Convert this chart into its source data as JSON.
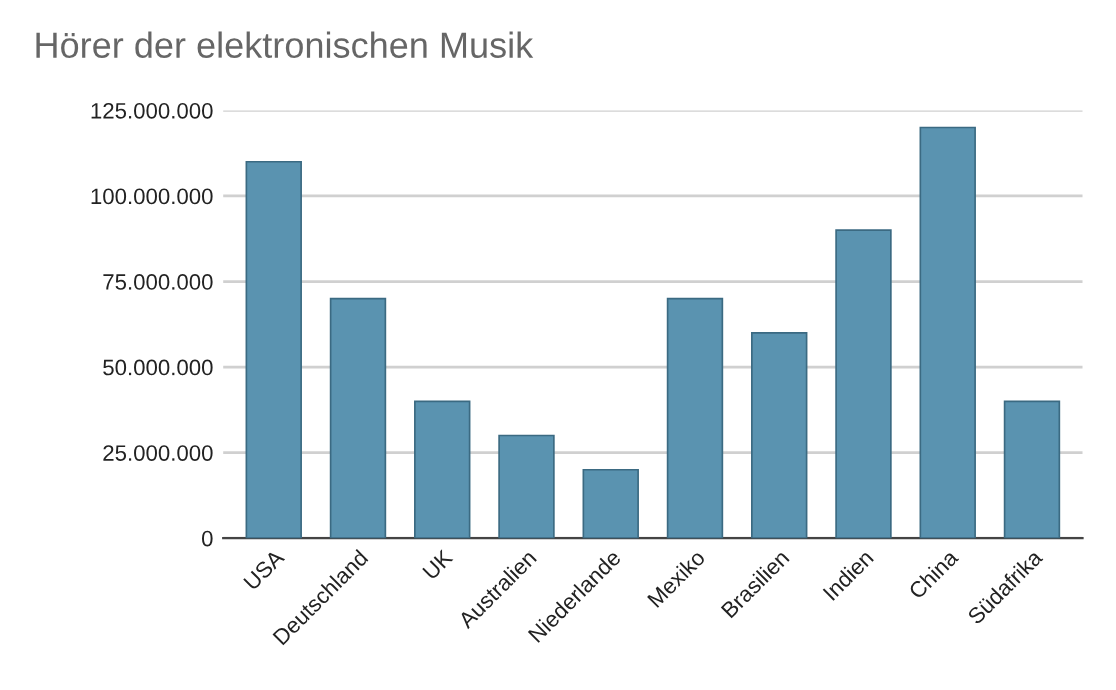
{
  "chart_data": {
    "type": "bar",
    "title": "Hörer der elektronischen Musik",
    "categories": [
      "USA",
      "Deutschland",
      "UK",
      "Australien",
      "Niederlande",
      "Mexiko",
      "Brasilien",
      "Indien",
      "China",
      "Südafrika"
    ],
    "values": [
      110000000,
      70000000,
      40000000,
      30000000,
      20000000,
      70000000,
      60000000,
      90000000,
      120000000,
      40000000
    ],
    "color": "#5a93b0",
    "ylim": [
      0,
      125000000
    ],
    "yticks": [
      {
        "value": 0,
        "label": "0"
      },
      {
        "value": 25000000,
        "label": "25.000.000"
      },
      {
        "value": 50000000,
        "label": "50.000.000"
      },
      {
        "value": 75000000,
        "label": "75.000.000"
      },
      {
        "value": 100000000,
        "label": "100.000.000"
      },
      {
        "value": 125000000,
        "label": "125.000.000"
      }
    ],
    "grid": "y",
    "legend": false
  }
}
